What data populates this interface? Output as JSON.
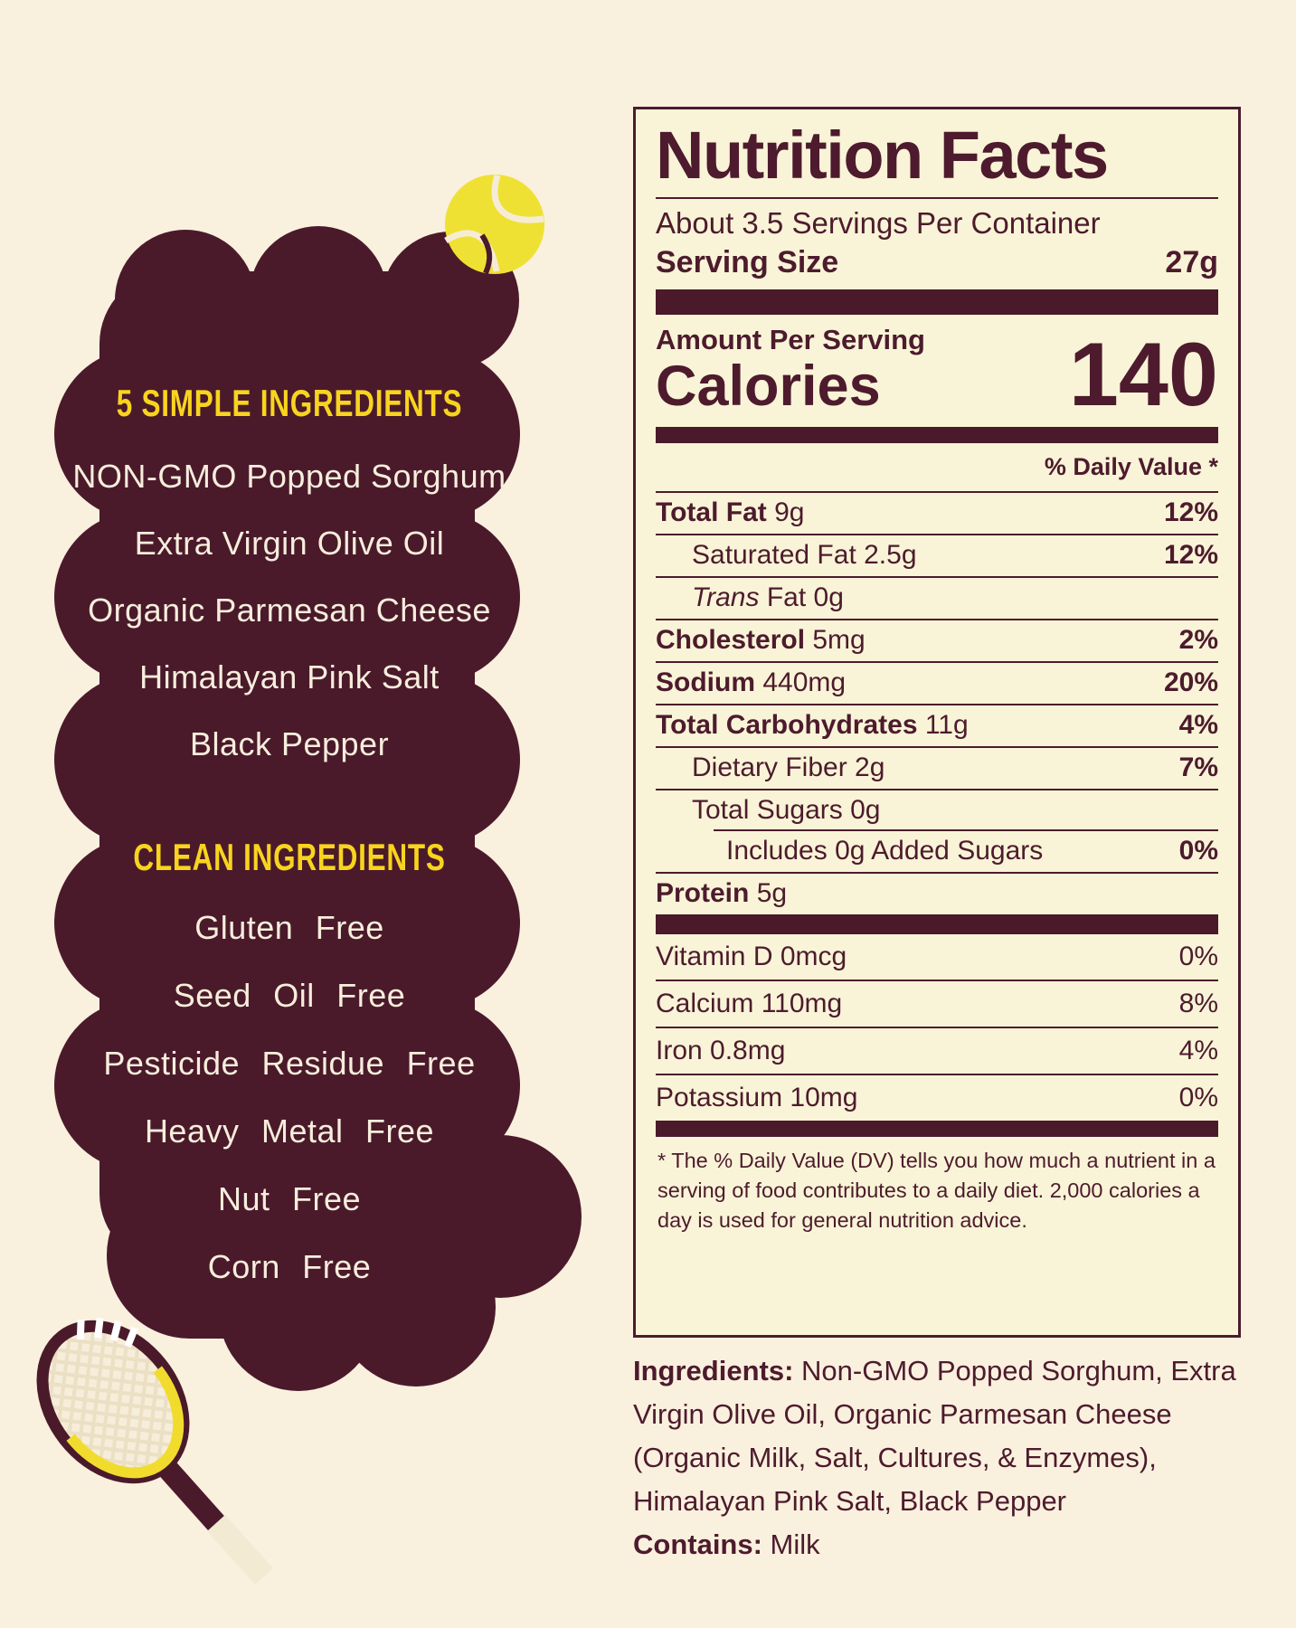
{
  "left_panel": {
    "heading1": "5 SIMPLE INGREDIENTS",
    "simple_ingredients": [
      "NON-GMO Popped Sorghum",
      "Extra Virgin Olive Oil",
      "Organic Parmesan Cheese",
      "Himalayan Pink Salt",
      "Black Pepper"
    ],
    "heading2": "CLEAN INGREDIENTS",
    "clean_ingredients": [
      "Gluten Free",
      "Seed Oil Free",
      "Pesticide Residue Free",
      "Heavy Metal Free",
      "Nut Free",
      "Corn Free"
    ]
  },
  "nutrition_label": {
    "title": "Nutrition Facts",
    "servings_per_container": "About 3.5 Servings Per Container",
    "serving_size_label": "Serving Size",
    "serving_size_value": "27g",
    "amount_per_serving_label": "Amount Per Serving",
    "calories_label": "Calories",
    "calories_value": "140",
    "daily_value_header": "% Daily Value *",
    "main_rows": [
      {
        "name": "Total Fat",
        "amount": "9g",
        "dv": "12%",
        "name_bold": true,
        "indent": 0
      },
      {
        "name": "Saturated Fat",
        "amount": "2.5g",
        "dv": "12%",
        "indent": 1
      },
      {
        "name": "Fat",
        "italic_prefix": "Trans",
        "amount": "0g",
        "dv": "",
        "indent": 1
      },
      {
        "name": "Cholesterol",
        "amount": "5mg",
        "dv": "2%",
        "name_bold": true,
        "indent": 0
      },
      {
        "name": "Sodium",
        "amount": "440mg",
        "dv": "20%",
        "name_bold": true,
        "indent": 0
      },
      {
        "name": "Total Carbohydrates",
        "amount": "11g",
        "dv": "4%",
        "name_bold": true,
        "indent": 0
      },
      {
        "name": "Dietary Fiber",
        "amount": "2g",
        "dv": "7%",
        "indent": 1
      },
      {
        "name": "Total Sugars",
        "amount": "0g",
        "dv": "",
        "indent": 1,
        "inset_separator": true
      },
      {
        "name": "Includes 0g Added Sugars",
        "amount": "",
        "dv": "0%",
        "indent": 2
      },
      {
        "name": "Protein",
        "amount": "5g",
        "dv": "",
        "name_bold": true,
        "indent": 0
      }
    ],
    "vitamin_rows": [
      {
        "name": "Vitamin D",
        "amount": "0mcg",
        "dv": "0%"
      },
      {
        "name": "Calcium",
        "amount": "110mg",
        "dv": "8%"
      },
      {
        "name": "Iron",
        "amount": "0.8mg",
        "dv": "4%"
      },
      {
        "name": "Potassium",
        "amount": "10mg",
        "dv": "0%"
      }
    ],
    "footnote": "* The % Daily Value (DV) tells you how much a nutrient in a serving of food contributes to a daily diet. 2,000 calories a day is used for general nutrition advice."
  },
  "ingredients_section": {
    "ingredients_label": "Ingredients:",
    "ingredients_text": " Non-GMO Popped Sorghum, Extra Virgin Olive Oil, Organic Parmesan Cheese (Organic Milk, Salt, Cultures, & Enzymes), Himalayan Pink Salt, Black Pepper",
    "contains_label": "Contains:",
    "contains_text": " Milk"
  },
  "colors": {
    "maroon": "#4A1A2B",
    "page_cream": "#FAF0DE",
    "label_cream": "#F9F4D7",
    "heading_yellow": "#F8D41E",
    "ball_yellow": "#EFE133",
    "cream_text": "#F7EEDC"
  },
  "illustrations": [
    "tennis-ball",
    "tennis-racket"
  ]
}
